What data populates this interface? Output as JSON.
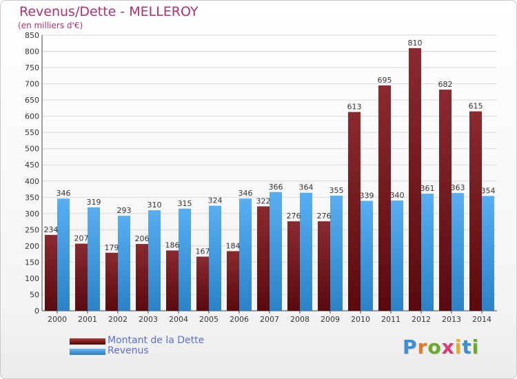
{
  "header": {
    "title": "Revenus/Dette - MELLEROY",
    "subtitle": "(en milliers d'€)"
  },
  "colors": {
    "title": "#b0306a",
    "dette": "#7a1a1e",
    "revenus": "#3d9be0",
    "legend_text": "#5a6fd6",
    "grid": "#d8d8d8"
  },
  "chart_data": {
    "type": "bar",
    "categories": [
      "2000",
      "2001",
      "2002",
      "2003",
      "2004",
      "2005",
      "2006",
      "2007",
      "2008",
      "2009",
      "2010",
      "2011",
      "2012",
      "2013",
      "2014"
    ],
    "series": [
      {
        "name": "Montant de la Dette",
        "values": [
          234,
          207,
          179,
          206,
          186,
          167,
          184,
          322,
          276,
          276,
          613,
          695,
          810,
          682,
          615
        ]
      },
      {
        "name": "Revenus",
        "values": [
          346,
          319,
          293,
          310,
          315,
          324,
          346,
          366,
          364,
          355,
          339,
          340,
          361,
          363,
          354
        ]
      }
    ],
    "ylim": [
      0,
      850
    ],
    "yticks": [
      0,
      50,
      100,
      150,
      200,
      250,
      300,
      350,
      400,
      450,
      500,
      550,
      600,
      650,
      700,
      750,
      800,
      850
    ],
    "grid": true,
    "legend_position": "bottom-left"
  },
  "legend": {
    "items": [
      {
        "label": "Montant de la Dette"
      },
      {
        "label": "Revenus"
      }
    ]
  },
  "logo": {
    "letters": [
      "P",
      "r",
      "o",
      "x",
      "i",
      "t",
      "i"
    ],
    "letter_colors": [
      "#3a8fd6",
      "#e07a2a",
      "#6aaa2a",
      "#d63a7a",
      "#e0b02a",
      "#3a8fd6",
      "#6aaa2a"
    ]
  }
}
